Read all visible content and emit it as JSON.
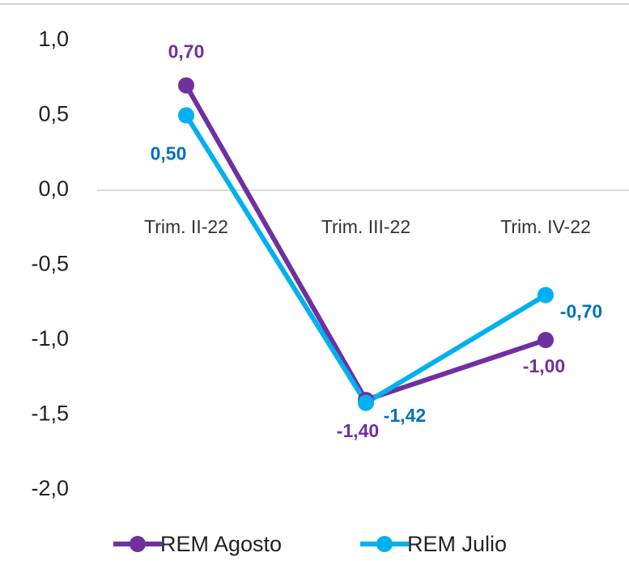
{
  "chart_data": {
    "type": "line",
    "categories": [
      "Trim. II-22",
      "Trim. III-22",
      "Trim. IV-22"
    ],
    "series": [
      {
        "name": "REM Agosto",
        "color": "#7030a0",
        "label_color": "#7030a0",
        "values": [
          0.7,
          -1.4,
          -1.0
        ],
        "value_labels": [
          "0,70",
          "-1,40",
          "-1,00"
        ]
      },
      {
        "name": "REM Julio",
        "color": "#00b0f0",
        "label_color": "#0070c0",
        "values": [
          0.5,
          -1.42,
          -0.7
        ],
        "value_labels": [
          "0,50",
          "-1,42",
          "-0,70"
        ]
      }
    ],
    "ylim": [
      -2,
      1
    ],
    "yticks": [
      {
        "value": -2,
        "label": "-2,0"
      },
      {
        "value": -1.5,
        "label": "-1,5"
      },
      {
        "value": -1,
        "label": "-1,0"
      },
      {
        "value": -0.5,
        "label": "-0,5"
      },
      {
        "value": 0,
        "label": "0,0"
      },
      {
        "value": 0.5,
        "label": "0,5"
      },
      {
        "value": 1,
        "label": "1,0"
      }
    ],
    "legend": "bottom"
  }
}
